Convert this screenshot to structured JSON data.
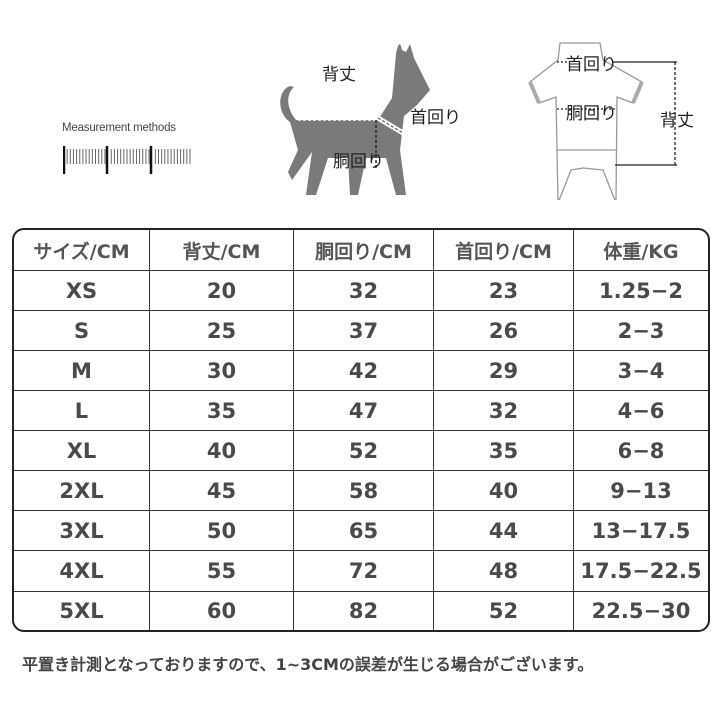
{
  "diagram": {
    "measurement_label": "Measurement methods",
    "dog": {
      "back_length": "背丈",
      "neck": "首回り",
      "chest": "胴回り"
    },
    "garment": {
      "neck": "首回り",
      "chest": "胴回り",
      "back_length": "背丈"
    }
  },
  "table": {
    "headers": [
      "サイズ/CM",
      "背丈/CM",
      "胴回り/CM",
      "首回り/CM",
      "体重/KG"
    ],
    "rows": [
      [
        "XS",
        "20",
        "32",
        "23",
        "1.25−2"
      ],
      [
        "S",
        "25",
        "37",
        "26",
        "2−3"
      ],
      [
        "M",
        "30",
        "42",
        "29",
        "3−4"
      ],
      [
        "L",
        "35",
        "47",
        "32",
        "4−6"
      ],
      [
        "XL",
        "40",
        "52",
        "35",
        "6−8"
      ],
      [
        "2XL",
        "45",
        "58",
        "40",
        "9−13"
      ],
      [
        "3XL",
        "50",
        "65",
        "44",
        "13−17.5"
      ],
      [
        "4XL",
        "55",
        "72",
        "48",
        "17.5−22.5"
      ],
      [
        "5XL",
        "60",
        "82",
        "52",
        "22.5−30"
      ]
    ]
  },
  "note": "平置き計測となっておりますので、1~3CMの誤差が生じる場合がございます。"
}
